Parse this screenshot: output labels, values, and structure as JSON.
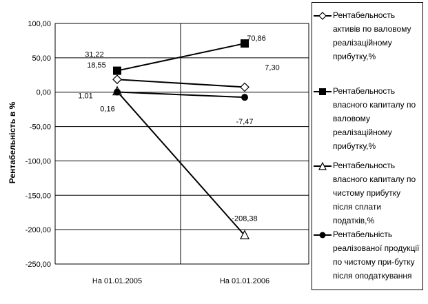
{
  "chart_data": {
    "type": "line",
    "categories": [
      "На 01.01.2005",
      "На 01.01.2006"
    ],
    "ylabel": "Рентабельність в %",
    "ylim": [
      -250,
      100
    ],
    "yticks": [
      "100,00",
      "50,00",
      "0,00",
      "-50,00",
      "-100,00",
      "-150,00",
      "-200,00",
      "-250,00"
    ],
    "ytick_values": [
      100,
      50,
      0,
      -50,
      -100,
      -150,
      -200,
      -250
    ],
    "grid": true,
    "legend_position": "right",
    "series": [
      {
        "name": "Рентабельность активів по валовому реалізаційному прибутку,%",
        "values": [
          18.55,
          7.3
        ],
        "labels": [
          "18,55",
          "7,30"
        ],
        "marker": "diamond-open"
      },
      {
        "name": "Рентабельность власного капиталу  по валовому реалізаційному прибутку,%",
        "values": [
          31.22,
          70.86
        ],
        "labels": [
          "31,22",
          "70,86"
        ],
        "marker": "square-filled"
      },
      {
        "name": "Рентабельность власного капиталу  по чистому прибутку після сплати податків,%",
        "values": [
          1.01,
          -208.38
        ],
        "labels": [
          "1,01",
          "-208,38"
        ],
        "marker": "triangle-open"
      },
      {
        "name": "Рентабельність реалізованої продукції по чистому при-бутку після оподаткування",
        "values": [
          0.16,
          -7.47
        ],
        "labels": [
          "0,16",
          "-7,47"
        ],
        "marker": "circle-filled"
      }
    ]
  },
  "colors": {
    "line": "#000000",
    "grid": "#000000",
    "background": "#ffffff"
  }
}
